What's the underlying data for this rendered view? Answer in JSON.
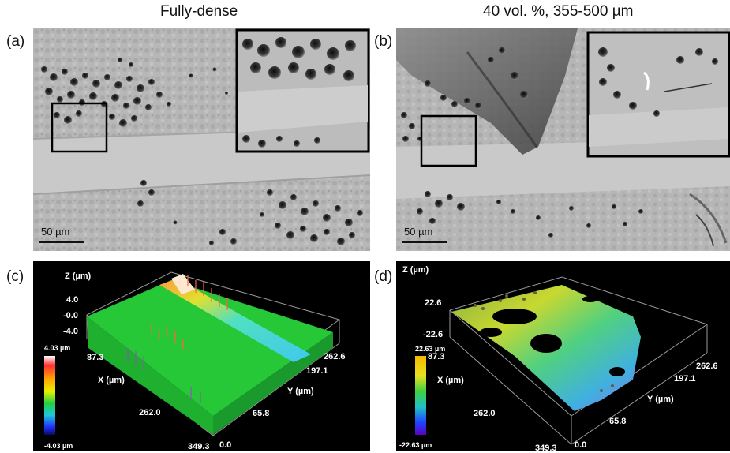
{
  "panel_a": {
    "label": "(a)",
    "title": "Fully-dense",
    "scale_bar": "50 µm"
  },
  "panel_b": {
    "label": "(b)",
    "title": "40 vol. %, 355-500 µm",
    "scale_bar": "50 µm"
  },
  "panel_c": {
    "label": "(c)",
    "z_axis_title": "Z (µm)",
    "z_ticks": [
      "4.0",
      "-0.0",
      "-4.0"
    ],
    "x_axis_title": "X (µm)",
    "x_ticks": [
      "87.3",
      "262.0",
      "349.3"
    ],
    "y_axis_title": "Y (µm)",
    "y_ticks": [
      "262.6",
      "197.1",
      "65.8",
      "0.0"
    ],
    "colorbar_max": "4.03 µm",
    "colorbar_min": "-4.03 µm"
  },
  "panel_d": {
    "label": "(d)",
    "z_axis_title": "Z (µm)",
    "z_ticks": [
      "22.6",
      "-22.6"
    ],
    "x_axis_title": "X (µm)",
    "x_ticks": [
      "87.3",
      "262.0",
      "349.3"
    ],
    "y_axis_title": "Y (µm)",
    "y_ticks": [
      "262.6",
      "197.1",
      "65.8",
      "0.0"
    ],
    "colorbar_max": "22.63 µm",
    "colorbar_min": "-22.63 µm"
  }
}
